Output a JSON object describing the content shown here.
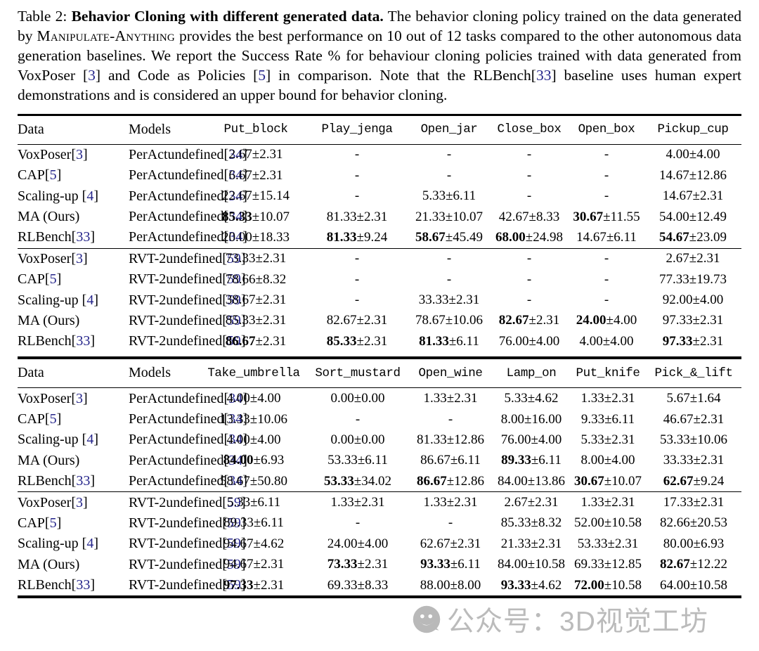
{
  "colors": {
    "citation": "#26268b",
    "watermark_gray": "#919191"
  },
  "caption": {
    "segments": [
      {
        "t": "Table 2: ",
        "s": "plain"
      },
      {
        "t": "Behavior Cloning with different generated data.",
        "s": "bold"
      },
      {
        "t": " The behavior cloning policy trained on the data generated by ",
        "s": "plain"
      },
      {
        "t": "Manipulate-Anything",
        "s": "smallcaps"
      },
      {
        "t": " provides the best performance on 10 out of 12 tasks compared to the other autonomous data generation baselines. We report the Success Rate % for behaviour cloning policies trained with data generated from VoxPoser ",
        "s": "plain"
      },
      {
        "t": "[",
        "s": "plain"
      },
      {
        "t": "3",
        "s": "cite"
      },
      {
        "t": "]",
        "s": "plain"
      },
      {
        "t": " and Code as Policies ",
        "s": "plain"
      },
      {
        "t": "[",
        "s": "plain"
      },
      {
        "t": "5",
        "s": "cite"
      },
      {
        "t": "]",
        "s": "plain"
      },
      {
        "t": " in comparison. Note that the RLBench",
        "s": "plain"
      },
      {
        "t": "[",
        "s": "plain"
      },
      {
        "t": "33",
        "s": "cite"
      },
      {
        "t": "]",
        "s": "plain"
      },
      {
        "t": " baseline uses human expert demonstrations and is considered an upper bound for behavior cloning.",
        "s": "plain"
      }
    ]
  },
  "tables": [
    {
      "headers": [
        "Data",
        "Models",
        "Put_block",
        "Play_jenga",
        "Open_jar",
        "Close_box",
        "Open_box",
        "Pickup_cup"
      ],
      "groups": [
        [
          {
            "data": {
              "label": "VoxPoser",
              "cite": "3",
              "sep": ""
            },
            "model": {
              "label": "PerAct",
              "cite": "34"
            },
            "cells": [
              "2.67±2.31",
              "-",
              "-",
              "-",
              "-",
              "4.00±4.00"
            ]
          },
          {
            "data": {
              "label": "CAP",
              "cite": "5",
              "sep": ""
            },
            "model": {
              "label": "PerAct",
              "cite": "34"
            },
            "cells": [
              "6.67±2.31",
              "-",
              "-",
              "-",
              "-",
              "14.67±12.86"
            ]
          },
          {
            "data": {
              "label": "Scaling-up",
              "cite": "4",
              "sep": " "
            },
            "model": {
              "label": "PerAct",
              "cite": "34"
            },
            "cells": [
              "22.67±15.14",
              "-",
              "5.33±6.11",
              "-",
              "-",
              "14.67±2.31"
            ]
          },
          {
            "data": {
              "label": "MA (Ours)",
              "cite": null,
              "sep": ""
            },
            "model": {
              "label": "PerAct",
              "cite": "34"
            },
            "cells": [
              {
                "b": "85.33",
                "r": "±10.07"
              },
              "81.33±2.31",
              "21.33±10.07",
              "42.67±8.33",
              {
                "b": "30.67",
                "r": "±11.55"
              },
              "54.00±12.49"
            ]
          },
          {
            "data": {
              "label": "RLBench",
              "cite": "33",
              "sep": ""
            },
            "model": {
              "label": "PerAct",
              "cite": "34"
            },
            "cells": [
              "20.00±18.33",
              {
                "b": "81.33",
                "r": "±9.24"
              },
              {
                "b": "58.67",
                "r": "±45.49"
              },
              {
                "b": "68.00",
                "r": "±24.98"
              },
              "14.67±6.11",
              {
                "b": "54.67",
                "r": "±23.09"
              }
            ]
          }
        ],
        [
          {
            "data": {
              "label": "VoxPoser",
              "cite": "3",
              "sep": ""
            },
            "model": {
              "label": "RVT-2",
              "cite": "59"
            },
            "cells": [
              "73.33±2.31",
              "-",
              "-",
              "-",
              "-",
              "2.67±2.31"
            ]
          },
          {
            "data": {
              "label": "CAP",
              "cite": "5",
              "sep": ""
            },
            "model": {
              "label": "RVT-2",
              "cite": "59"
            },
            "cells": [
              "78.66±8.32",
              "-",
              "-",
              "-",
              "-",
              "77.33±19.73"
            ]
          },
          {
            "data": {
              "label": "Scaling-up",
              "cite": "4",
              "sep": " "
            },
            "model": {
              "label": "RVT-2",
              "cite": "59"
            },
            "cells": [
              "38.67±2.31",
              "-",
              "33.33±2.31",
              "-",
              "-",
              "92.00±4.00"
            ]
          },
          {
            "data": {
              "label": "MA (Ours)",
              "cite": null,
              "sep": ""
            },
            "model": {
              "label": "RVT-2",
              "cite": "59"
            },
            "cells": [
              "85.33±2.31",
              "82.67±2.31",
              "78.67±10.06",
              {
                "b": "82.67",
                "r": "±2.31"
              },
              {
                "b": "24.00",
                "r": "±4.00"
              },
              "97.33±2.31"
            ]
          },
          {
            "data": {
              "label": "RLBench",
              "cite": "33",
              "sep": ""
            },
            "model": {
              "label": "RVT-2",
              "cite": "59"
            },
            "cells": [
              {
                "b": "86.67",
                "r": "±2.31"
              },
              {
                "b": "85.33",
                "r": "±2.31"
              },
              {
                "b": "81.33",
                "r": "±6.11"
              },
              "76.00±4.00",
              "4.00±4.00",
              {
                "b": "97.33",
                "r": "±2.31"
              }
            ]
          }
        ]
      ]
    },
    {
      "headers": [
        "Data",
        "Models",
        "Take_umbrella",
        "Sort_mustard",
        "Open_wine",
        "Lamp_on",
        "Put_knife",
        "Pick_&_lift"
      ],
      "groups": [
        [
          {
            "data": {
              "label": "VoxPoser",
              "cite": "3",
              "sep": ""
            },
            "model": {
              "label": "PerAct",
              "cite": "34"
            },
            "cells": [
              "4.00±4.00",
              "0.00±0.00",
              "1.33±2.31",
              "5.33±4.62",
              "1.33±2.31",
              "5.67±1.64"
            ]
          },
          {
            "data": {
              "label": "CAP",
              "cite": "5",
              "sep": ""
            },
            "model": {
              "label": "PerAct",
              "cite": "34"
            },
            "cells": [
              "13.33±10.06",
              "-",
              "-",
              "8.00±16.00",
              "9.33±6.11",
              "46.67±2.31"
            ]
          },
          {
            "data": {
              "label": "Scaling-up",
              "cite": "4",
              "sep": " "
            },
            "model": {
              "label": "PerAct",
              "cite": "34"
            },
            "cells": [
              "4.00±4.00",
              "0.00±0.00",
              "81.33±12.86",
              "76.00±4.00",
              "5.33±2.31",
              "53.33±10.06"
            ]
          },
          {
            "data": {
              "label": "MA (Ours)",
              "cite": null,
              "sep": ""
            },
            "model": {
              "label": "PerAct",
              "cite": "34"
            },
            "cells": [
              {
                "b": "84.00",
                "r": "±6.93"
              },
              "53.33±6.11",
              "86.67±6.11",
              {
                "b": "89.33",
                "r": "±6.11"
              },
              "8.00±4.00",
              "33.33±2.31"
            ]
          },
          {
            "data": {
              "label": "RLBench",
              "cite": "33",
              "sep": ""
            },
            "model": {
              "label": "PerAct",
              "cite": "34"
            },
            "cells": [
              "58.67±50.80",
              {
                "b": "53.33",
                "r": "±34.02"
              },
              {
                "b": "86.67",
                "r": "±12.86"
              },
              "84.00±13.86",
              {
                "b": "30.67",
                "r": "±10.07"
              },
              {
                "b": "62.67",
                "r": "±9.24"
              }
            ]
          }
        ],
        [
          {
            "data": {
              "label": "VoxPoser",
              "cite": "3",
              "sep": ""
            },
            "model": {
              "label": "RVT-2",
              "cite": "59"
            },
            "cells": [
              "5.33±6.11",
              "1.33±2.31",
              "1.33±2.31",
              "2.67±2.31",
              "1.33±2.31",
              "17.33±2.31"
            ]
          },
          {
            "data": {
              "label": "CAP",
              "cite": "5",
              "sep": ""
            },
            "model": {
              "label": "RVT-2",
              "cite": "59"
            },
            "cells": [
              "89.33±6.11",
              "-",
              "-",
              "85.33±8.32",
              "52.00±10.58",
              "82.66±20.53"
            ]
          },
          {
            "data": {
              "label": "Scaling-up",
              "cite": "4",
              "sep": " "
            },
            "model": {
              "label": "RVT-2",
              "cite": "59"
            },
            "cells": [
              "94.67±4.62",
              "24.00±4.00",
              "62.67±2.31",
              "21.33±2.31",
              "53.33±2.31",
              "80.00±6.93"
            ]
          },
          {
            "data": {
              "label": "MA (Ours)",
              "cite": null,
              "sep": ""
            },
            "model": {
              "label": "RVT-2",
              "cite": "59"
            },
            "cells": [
              "94.67±2.31",
              {
                "b": "73.33",
                "r": "±2.31"
              },
              {
                "b": "93.33",
                "r": "±6.11"
              },
              "84.00±10.58",
              "69.33±12.85",
              {
                "b": "82.67",
                "r": "±12.22"
              }
            ]
          },
          {
            "data": {
              "label": "RLBench",
              "cite": "33",
              "sep": ""
            },
            "model": {
              "label": "RVT-2",
              "cite": "59"
            },
            "cells": [
              {
                "b": "97.33",
                "r": "±2.31"
              },
              "69.33±8.33",
              "88.00±8.00",
              {
                "b": "93.33",
                "r": "±4.62"
              },
              {
                "b": "72.00",
                "r": "±10.58"
              },
              "64.00±10.58"
            ]
          }
        ]
      ]
    }
  ],
  "watermark": {
    "icon": "wechat-icon",
    "text": "公众号：3D视觉工坊"
  }
}
